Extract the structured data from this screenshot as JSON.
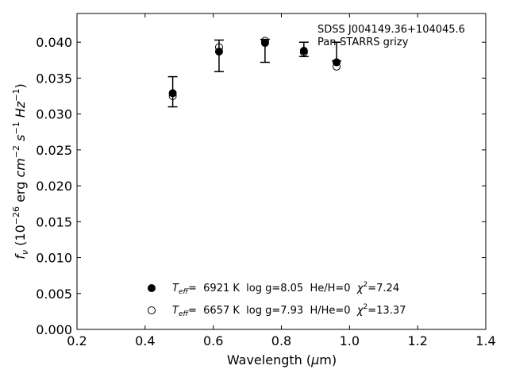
{
  "chart_data": {
    "type": "scatter",
    "title": "",
    "annotation": [
      "SDSS J004149.36+104045.6",
      "Pan-STARRS grizy"
    ],
    "xlabel": "Wavelength (μm)",
    "xlabel_parts": {
      "main": "Wavelength (",
      "mu": "μ",
      "rest": "m)"
    },
    "ylabel": "f_ν (10^-26 erg cm^-2 s^-1 Hz^-1)",
    "xlim": [
      0.2,
      1.4
    ],
    "ylim": [
      0.0,
      0.044
    ],
    "xticks": [
      0.2,
      0.4,
      0.6,
      0.8,
      1.0,
      1.2,
      1.4
    ],
    "xtick_labels": [
      "0.2",
      "0.4",
      "0.6",
      "0.8",
      "1.0",
      "1.2",
      "1.4"
    ],
    "yticks": [
      0.0,
      0.005,
      0.01,
      0.015,
      0.02,
      0.025,
      0.03,
      0.035,
      0.04
    ],
    "ytick_labels": [
      "0.000",
      "0.005",
      "0.010",
      "0.015",
      "0.020",
      "0.025",
      "0.030",
      "0.035",
      "0.040"
    ],
    "grid": false,
    "legend_position": "bottom-center",
    "observed": {
      "x": [
        0.481,
        0.617,
        0.752,
        0.866,
        0.962
      ],
      "y": [
        0.0331,
        0.0381,
        0.0388,
        0.039,
        0.0387
      ],
      "yerr": [
        0.0021,
        0.0022,
        0.0016,
        0.001,
        0.0013
      ]
    },
    "series": [
      {
        "name": "Teff= 6921 K log g=8.05 He/H=0 χ2=7.24",
        "marker": "filled-circle",
        "legend_text": {
          "t": "T",
          "eff": "eff",
          "rest": "=  6921 K  log g=8.05  He/H=0  ",
          "chi": "χ",
          "two": "2",
          "chival": "=7.24"
        },
        "x": [
          0.481,
          0.617,
          0.752,
          0.866,
          0.962
        ],
        "y": [
          0.0329,
          0.0387,
          0.0399,
          0.0388,
          0.0372
        ]
      },
      {
        "name": "Teff= 6657 K log g=7.93 H/He=0 χ2=13.37",
        "marker": "open-circle",
        "legend_text": {
          "t": "T",
          "eff": "eff",
          "rest": "=  6657 K  log g=7.93  H/He=0  ",
          "chi": "χ",
          "two": "2",
          "chival": "=13.37"
        },
        "x": [
          0.481,
          0.617,
          0.752,
          0.866,
          0.962
        ],
        "y": [
          0.0325,
          0.0393,
          0.0402,
          0.0386,
          0.0366
        ]
      }
    ]
  }
}
